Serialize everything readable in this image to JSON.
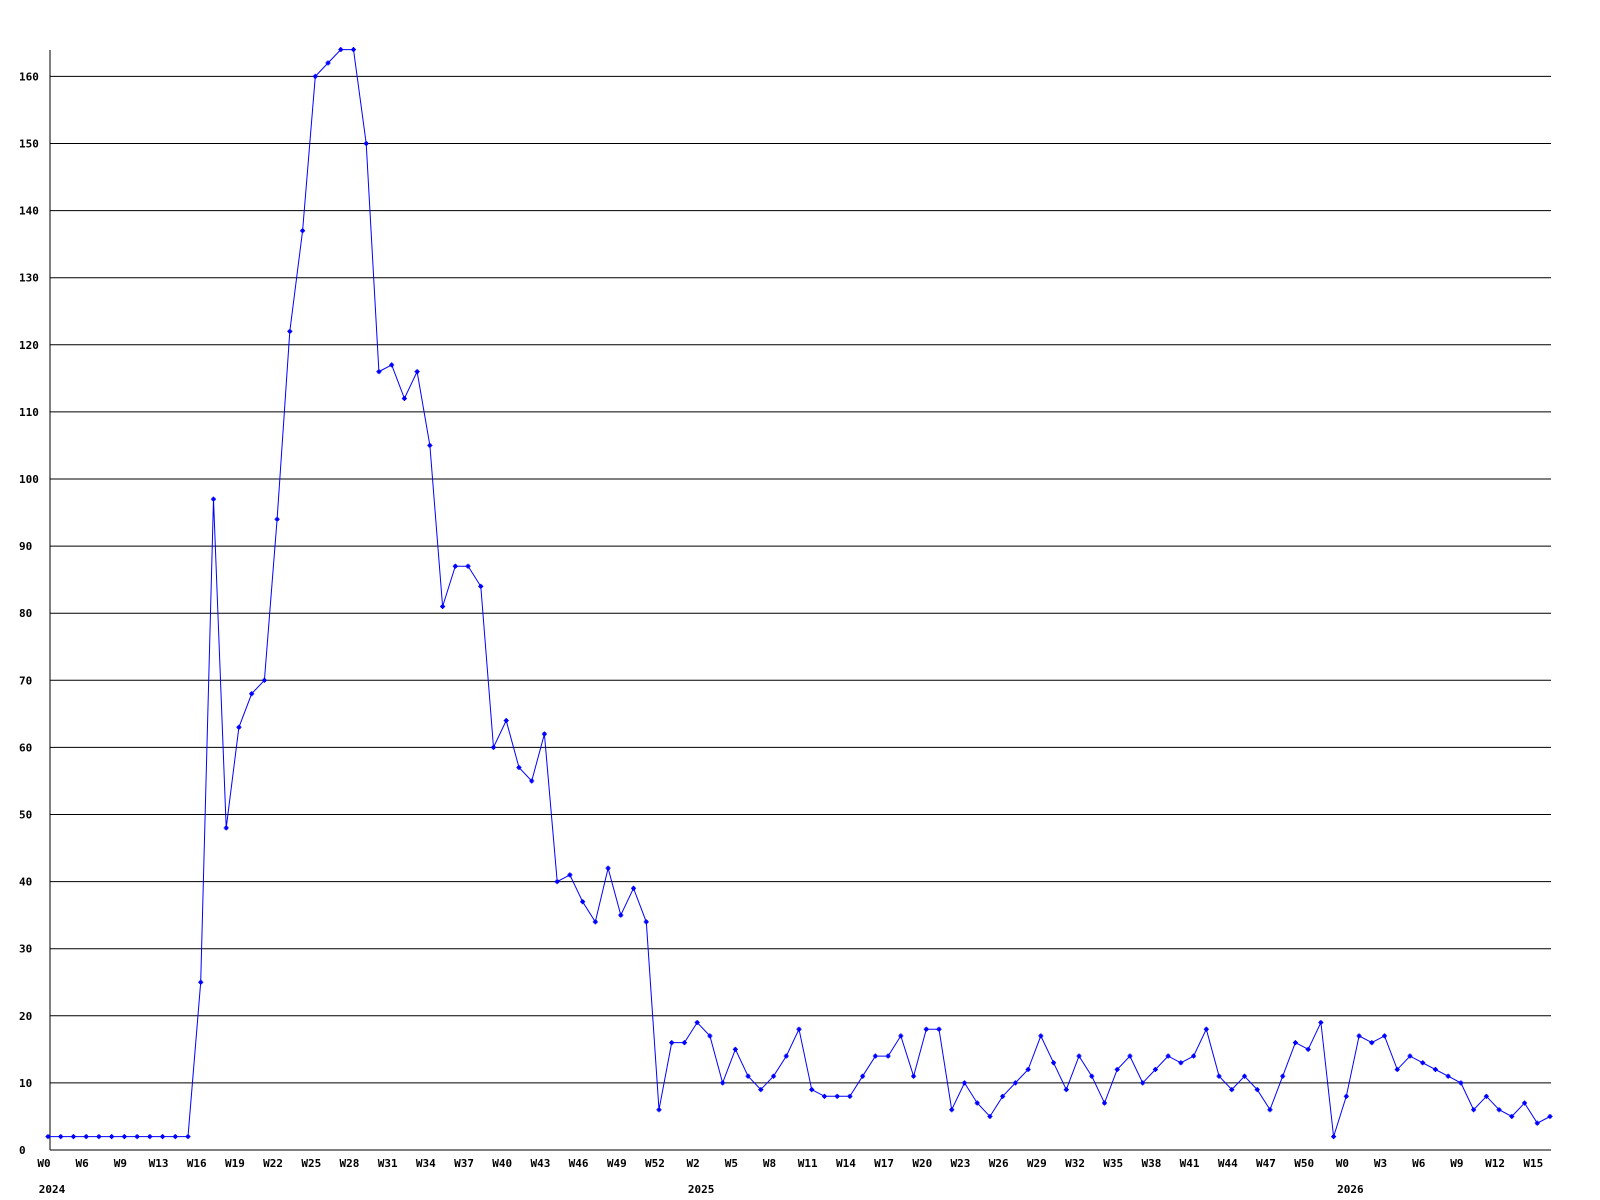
{
  "chart_data": {
    "type": "line",
    "title": "",
    "xlabel": "",
    "ylabel": "",
    "ylim": [
      0,
      164
    ],
    "yticks": [
      0,
      10,
      20,
      30,
      40,
      50,
      60,
      70,
      80,
      90,
      100,
      110,
      120,
      130,
      140,
      150,
      160
    ],
    "grid": true,
    "line_color": "#0000ff",
    "grid_color": "#000000",
    "x_tick_labels": [
      {
        "index": 0,
        "label": "W0",
        "year": "2024"
      },
      {
        "index": 3,
        "label": "W6"
      },
      {
        "index": 6,
        "label": "W9"
      },
      {
        "index": 9,
        "label": "W13"
      },
      {
        "index": 12,
        "label": "W16"
      },
      {
        "index": 15,
        "label": "W19"
      },
      {
        "index": 18,
        "label": "W22"
      },
      {
        "index": 21,
        "label": "W25"
      },
      {
        "index": 24,
        "label": "W28"
      },
      {
        "index": 27,
        "label": "W31"
      },
      {
        "index": 30,
        "label": "W34"
      },
      {
        "index": 33,
        "label": "W37"
      },
      {
        "index": 36,
        "label": "W40"
      },
      {
        "index": 39,
        "label": "W43"
      },
      {
        "index": 42,
        "label": "W46"
      },
      {
        "index": 45,
        "label": "W49"
      },
      {
        "index": 48,
        "label": "W52"
      },
      {
        "index": 51,
        "label": "W2",
        "year": "2025"
      },
      {
        "index": 54,
        "label": "W5"
      },
      {
        "index": 57,
        "label": "W8"
      },
      {
        "index": 60,
        "label": "W11"
      },
      {
        "index": 63,
        "label": "W14"
      },
      {
        "index": 66,
        "label": "W17"
      },
      {
        "index": 69,
        "label": "W20"
      },
      {
        "index": 72,
        "label": "W23"
      },
      {
        "index": 75,
        "label": "W26"
      },
      {
        "index": 78,
        "label": "W29"
      },
      {
        "index": 81,
        "label": "W32"
      },
      {
        "index": 84,
        "label": "W35"
      },
      {
        "index": 87,
        "label": "W38"
      },
      {
        "index": 90,
        "label": "W41"
      },
      {
        "index": 93,
        "label": "W44"
      },
      {
        "index": 96,
        "label": "W47"
      },
      {
        "index": 99,
        "label": "W50"
      },
      {
        "index": 102,
        "label": "W0",
        "year": "2026"
      },
      {
        "index": 105,
        "label": "W3"
      },
      {
        "index": 108,
        "label": "W6"
      },
      {
        "index": 111,
        "label": "W9"
      },
      {
        "index": 114,
        "label": "W12"
      },
      {
        "index": 117,
        "label": "W15"
      }
    ],
    "series": [
      {
        "values": [
          2,
          2,
          2,
          2,
          2,
          2,
          2,
          2,
          2,
          2,
          2,
          2,
          25,
          97,
          48,
          63,
          68,
          70,
          94,
          122,
          137,
          160,
          162,
          164,
          164,
          150,
          116,
          117,
          112,
          116,
          105,
          81,
          87,
          87,
          84,
          60,
          64,
          57,
          55,
          62,
          40,
          41,
          37,
          34,
          42,
          35,
          39,
          34,
          6,
          16,
          16,
          19,
          17,
          10,
          15,
          11,
          9,
          11,
          14,
          18,
          9,
          8,
          8,
          8,
          11,
          14,
          14,
          17,
          11,
          18,
          18,
          6,
          10,
          7,
          5,
          8,
          10,
          12,
          17,
          13,
          9,
          14,
          11,
          7,
          12,
          14,
          10,
          12,
          14,
          13,
          14,
          18,
          11,
          9,
          11,
          9,
          6,
          11,
          16,
          15,
          19,
          2,
          8,
          17,
          16,
          17,
          12,
          14,
          13,
          12,
          11,
          10,
          6,
          8,
          6,
          5,
          7,
          4,
          5
        ]
      }
    ]
  }
}
